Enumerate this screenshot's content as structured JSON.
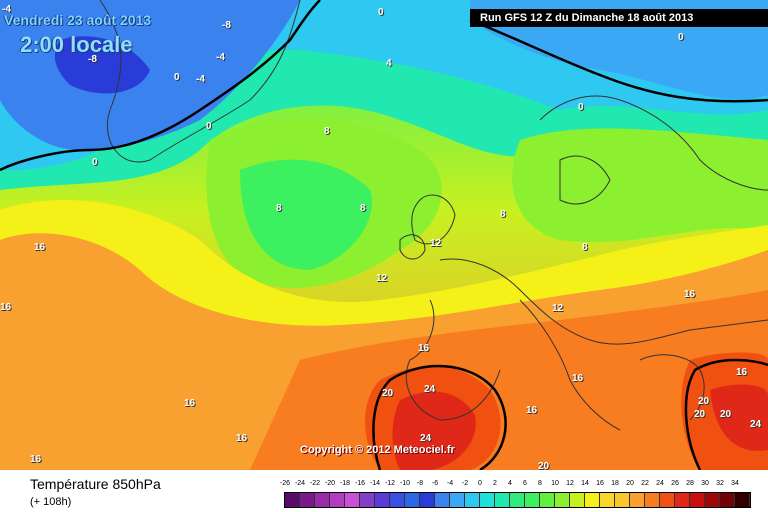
{
  "header": {
    "valid_time": "Vendredi 23 août 2013",
    "local_time": "2:00 locale",
    "run_info": "Run GFS 12 Z du Dimanche 18 août 2013"
  },
  "map": {
    "copyright": "Copyright © 2012 Meteociel.fr",
    "colors": {
      "minus8": "#2a3cd8",
      "minus4": "#3a82ee",
      "zero": "#2ec8f0",
      "four": "#20e8b0",
      "six": "#3cf060",
      "eight": "#8cf030",
      "ten": "#c8f020",
      "twelve": "#f4f018",
      "fourteen": "#f8c82c",
      "sixteen": "#f8a030",
      "eighteen": "#f87c20",
      "twenty": "#f05010",
      "twentyfour": "#e02818"
    },
    "labels": [
      {
        "text": "-4"
      },
      {
        "text": "-8"
      },
      {
        "text": "-8"
      },
      {
        "text": "-4"
      },
      {
        "text": "-4"
      },
      {
        "text": "0"
      },
      {
        "text": "0"
      },
      {
        "text": "0"
      },
      {
        "text": "0"
      },
      {
        "text": "0"
      },
      {
        "text": "0"
      },
      {
        "text": "4"
      },
      {
        "text": "8"
      },
      {
        "text": "8"
      },
      {
        "text": "8"
      },
      {
        "text": "8"
      },
      {
        "text": "8"
      },
      {
        "text": "12"
      },
      {
        "text": "12"
      },
      {
        "text": "12"
      },
      {
        "text": "16"
      },
      {
        "text": "16"
      },
      {
        "text": "16"
      },
      {
        "text": "16"
      },
      {
        "text": "16"
      },
      {
        "text": "16"
      },
      {
        "text": "16"
      },
      {
        "text": "16"
      },
      {
        "text": "16"
      },
      {
        "text": "16"
      },
      {
        "text": "20"
      },
      {
        "text": "20"
      },
      {
        "text": "20"
      },
      {
        "text": "20"
      },
      {
        "text": "20"
      },
      {
        "text": "24"
      },
      {
        "text": "24"
      },
      {
        "text": "24"
      }
    ]
  },
  "footer": {
    "title": "Température 850hPa",
    "hours": "(+ 108h)",
    "scale_labels": [
      "-26",
      "-24",
      "-22",
      "-20",
      "-18",
      "-16",
      "-14",
      "-12",
      "-10",
      "-8",
      "-6",
      "-4",
      "-2",
      "0",
      "2",
      "4",
      "6",
      "8",
      "10",
      "12",
      "14",
      "16",
      "18",
      "20",
      "22",
      "24",
      "26",
      "28",
      "30",
      "32",
      "34"
    ],
    "scale_colors": [
      "#5a0a6a",
      "#7a1a8a",
      "#9a2aa8",
      "#b43cc0",
      "#c850d4",
      "#8040c8",
      "#5a3ad8",
      "#3a50e0",
      "#2a68e8",
      "#2a3cd8",
      "#3a82ee",
      "#3aa8f4",
      "#2ec8f0",
      "#20e0d8",
      "#20e8b0",
      "#30ec80",
      "#3cf060",
      "#60f040",
      "#8cf030",
      "#c8f020",
      "#f4f018",
      "#f8d82c",
      "#f8c82c",
      "#f8a030",
      "#f87c20",
      "#f05010",
      "#e02818",
      "#c81010",
      "#a00808",
      "#700404",
      "#300000"
    ]
  }
}
